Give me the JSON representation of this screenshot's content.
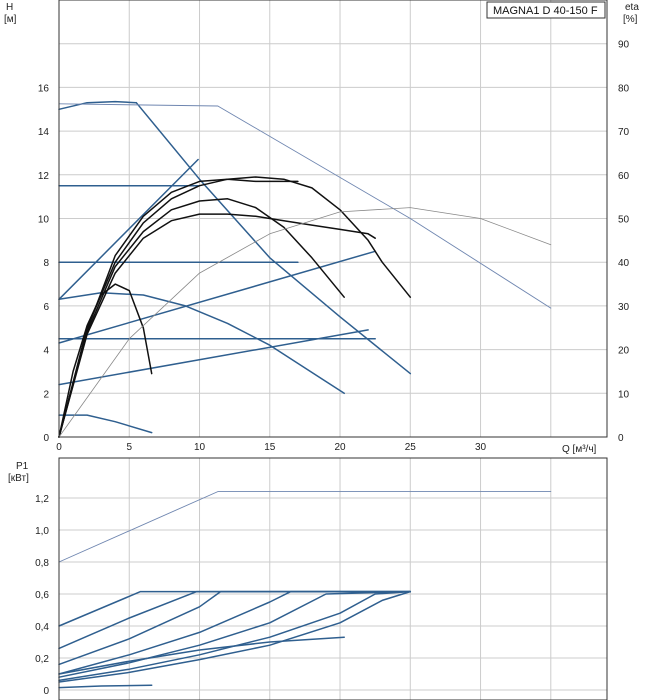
{
  "colors": {
    "blue": "#2f5f8f",
    "black": "#111111",
    "thin_blue": "#6f86b0",
    "thin_gray": "#888888",
    "grid": "#cccccc"
  },
  "chart_data": [
    {
      "type": "line",
      "title": "",
      "legend": "MAGNA1 D 40-150 F",
      "legend_position": "top-right",
      "xlabel": "Q [м³/ч]",
      "ylabel_lines": [
        "H",
        "[м]"
      ],
      "y2label_lines": [
        "eta",
        "[%]"
      ],
      "xlim": [
        0,
        39
      ],
      "ylim": [
        0,
        20
      ],
      "y2lim": [
        0,
        100
      ],
      "x_ticks": [
        "0",
        "5",
        "10",
        "15",
        "20",
        "25",
        "30"
      ],
      "y_ticks": [
        "0",
        "2",
        "4",
        "6",
        "8",
        "10",
        "12",
        "14",
        "16"
      ],
      "y2_ticks": [
        "0",
        "10",
        "20",
        "30",
        "40",
        "50",
        "60",
        "70",
        "80",
        "90"
      ],
      "grid": true,
      "series": [
        {
          "style": "blue",
          "x": [
            0,
            2,
            4,
            5.5
          ],
          "y": [
            15.0,
            15.3,
            15.35,
            15.3
          ]
        },
        {
          "style": "blue",
          "x": [
            5.5,
            10,
            15,
            20,
            25
          ],
          "y": [
            15.3,
            11.8,
            8.2,
            5.5,
            2.9
          ]
        },
        {
          "style": "blue",
          "x": [
            0,
            9.9
          ],
          "y": [
            6.3,
            12.7
          ]
        },
        {
          "style": "blue",
          "x": [
            0,
            9.9
          ],
          "y": [
            11.5,
            11.5
          ]
        },
        {
          "style": "blue",
          "x": [
            0,
            17
          ],
          "y": [
            8.0,
            8.0
          ]
        },
        {
          "style": "blue",
          "x": [
            0,
            22.5
          ],
          "y": [
            4.5,
            4.5
          ]
        },
        {
          "style": "blue",
          "x": [
            0,
            22.5
          ],
          "y": [
            4.3,
            8.5
          ]
        },
        {
          "style": "blue",
          "x": [
            0,
            22
          ],
          "y": [
            2.4,
            4.9
          ]
        },
        {
          "style": "blue",
          "x": [
            0,
            3,
            6,
            9,
            12,
            15,
            20.3
          ],
          "y": [
            6.3,
            6.6,
            6.5,
            6.0,
            5.2,
            4.2,
            2.0
          ]
        },
        {
          "style": "blue",
          "x": [
            0,
            2,
            4,
            6.6
          ],
          "y": [
            1.0,
            1.0,
            0.7,
            0.2
          ]
        },
        {
          "style": "black",
          "x": [
            0,
            2,
            4,
            6,
            8,
            10,
            12,
            14,
            16,
            18,
            20,
            22,
            23,
            25
          ],
          "y": [
            0,
            5.0,
            8.0,
            9.8,
            10.9,
            11.5,
            11.8,
            11.9,
            11.8,
            11.4,
            10.4,
            9.0,
            8.0,
            6.4
          ]
        },
        {
          "style": "black",
          "x": [
            0,
            2,
            4,
            6,
            8,
            10,
            12,
            14,
            16,
            18,
            20,
            22,
            22.5
          ],
          "y": [
            0,
            4.7,
            7.5,
            9.1,
            9.9,
            10.2,
            10.2,
            10.1,
            9.9,
            9.7,
            9.5,
            9.3,
            9.1
          ]
        },
        {
          "style": "black",
          "x": [
            0,
            2,
            4,
            6,
            8,
            10,
            12,
            14,
            16,
            18,
            20.3
          ],
          "y": [
            0,
            4.8,
            7.8,
            9.4,
            10.4,
            10.8,
            10.9,
            10.5,
            9.6,
            8.2,
            6.4
          ]
        },
        {
          "style": "black",
          "x": [
            0,
            2,
            4,
            6,
            8,
            10,
            12,
            14,
            16,
            17
          ],
          "y": [
            0,
            4.9,
            8.3,
            10.1,
            11.2,
            11.7,
            11.8,
            11.7,
            11.7,
            11.7
          ]
        },
        {
          "style": "black",
          "x": [
            0,
            1,
            2,
            3,
            4,
            5,
            6,
            6.6
          ],
          "y": [
            0,
            3.0,
            5.1,
            6.5,
            7.0,
            6.7,
            5.0,
            2.9
          ]
        },
        {
          "style": "thin_blue",
          "x": [
            0,
            11.3
          ],
          "y": [
            15.25,
            15.15
          ]
        },
        {
          "style": "thin_blue",
          "x": [
            11.3,
            25,
            35
          ],
          "y": [
            15.15,
            10.0,
            5.9
          ]
        },
        {
          "style": "thin_gray",
          "x": [
            0,
            5,
            10,
            15,
            20,
            25,
            30,
            35
          ],
          "y": [
            0,
            4.5,
            7.5,
            9.3,
            10.3,
            10.5,
            10.0,
            8.8
          ]
        }
      ]
    },
    {
      "type": "line",
      "title": "",
      "xlabel": "",
      "ylabel_lines": [
        "P1",
        "[кВт]"
      ],
      "xlim": [
        0,
        39
      ],
      "ylim": [
        0,
        1.45
      ],
      "x_ticks": [],
      "y_ticks": [
        "0",
        "0,2",
        "0,4",
        "0,6",
        "0,8",
        "1,0",
        "1,2"
      ],
      "grid": true,
      "series": [
        {
          "style": "thin_blue",
          "x": [
            0,
            11.3,
            35
          ],
          "y": [
            0.8,
            1.24,
            1.24
          ]
        },
        {
          "style": "blue",
          "x": [
            0,
            5.8,
            25
          ],
          "y": [
            0.4,
            0.615,
            0.615
          ]
        },
        {
          "style": "blue",
          "x": [
            0,
            5,
            9.8,
            25
          ],
          "y": [
            0.26,
            0.45,
            0.615,
            0.615
          ]
        },
        {
          "style": "blue",
          "x": [
            0,
            5,
            10,
            11.5,
            25
          ],
          "y": [
            0.16,
            0.32,
            0.52,
            0.615,
            0.615
          ]
        },
        {
          "style": "blue",
          "x": [
            0,
            5,
            10,
            15,
            16.5,
            25
          ],
          "y": [
            0.1,
            0.22,
            0.36,
            0.55,
            0.615,
            0.615
          ]
        },
        {
          "style": "blue",
          "x": [
            0,
            5,
            10,
            15,
            19,
            25
          ],
          "y": [
            0.08,
            0.17,
            0.28,
            0.42,
            0.6,
            0.615
          ]
        },
        {
          "style": "blue",
          "x": [
            0,
            5,
            10,
            15,
            20,
            22.5,
            25
          ],
          "y": [
            0.06,
            0.13,
            0.22,
            0.33,
            0.48,
            0.6,
            0.615
          ]
        },
        {
          "style": "blue",
          "x": [
            0,
            5,
            10,
            15,
            20,
            23,
            25
          ],
          "y": [
            0.05,
            0.11,
            0.19,
            0.28,
            0.42,
            0.56,
            0.615
          ]
        },
        {
          "style": "blue",
          "x": [
            0,
            5,
            10,
            15,
            20.3
          ],
          "y": [
            0.1,
            0.18,
            0.25,
            0.3,
            0.33
          ]
        },
        {
          "style": "blue",
          "x": [
            0,
            3,
            6.6
          ],
          "y": [
            0.015,
            0.025,
            0.03
          ]
        }
      ]
    }
  ]
}
